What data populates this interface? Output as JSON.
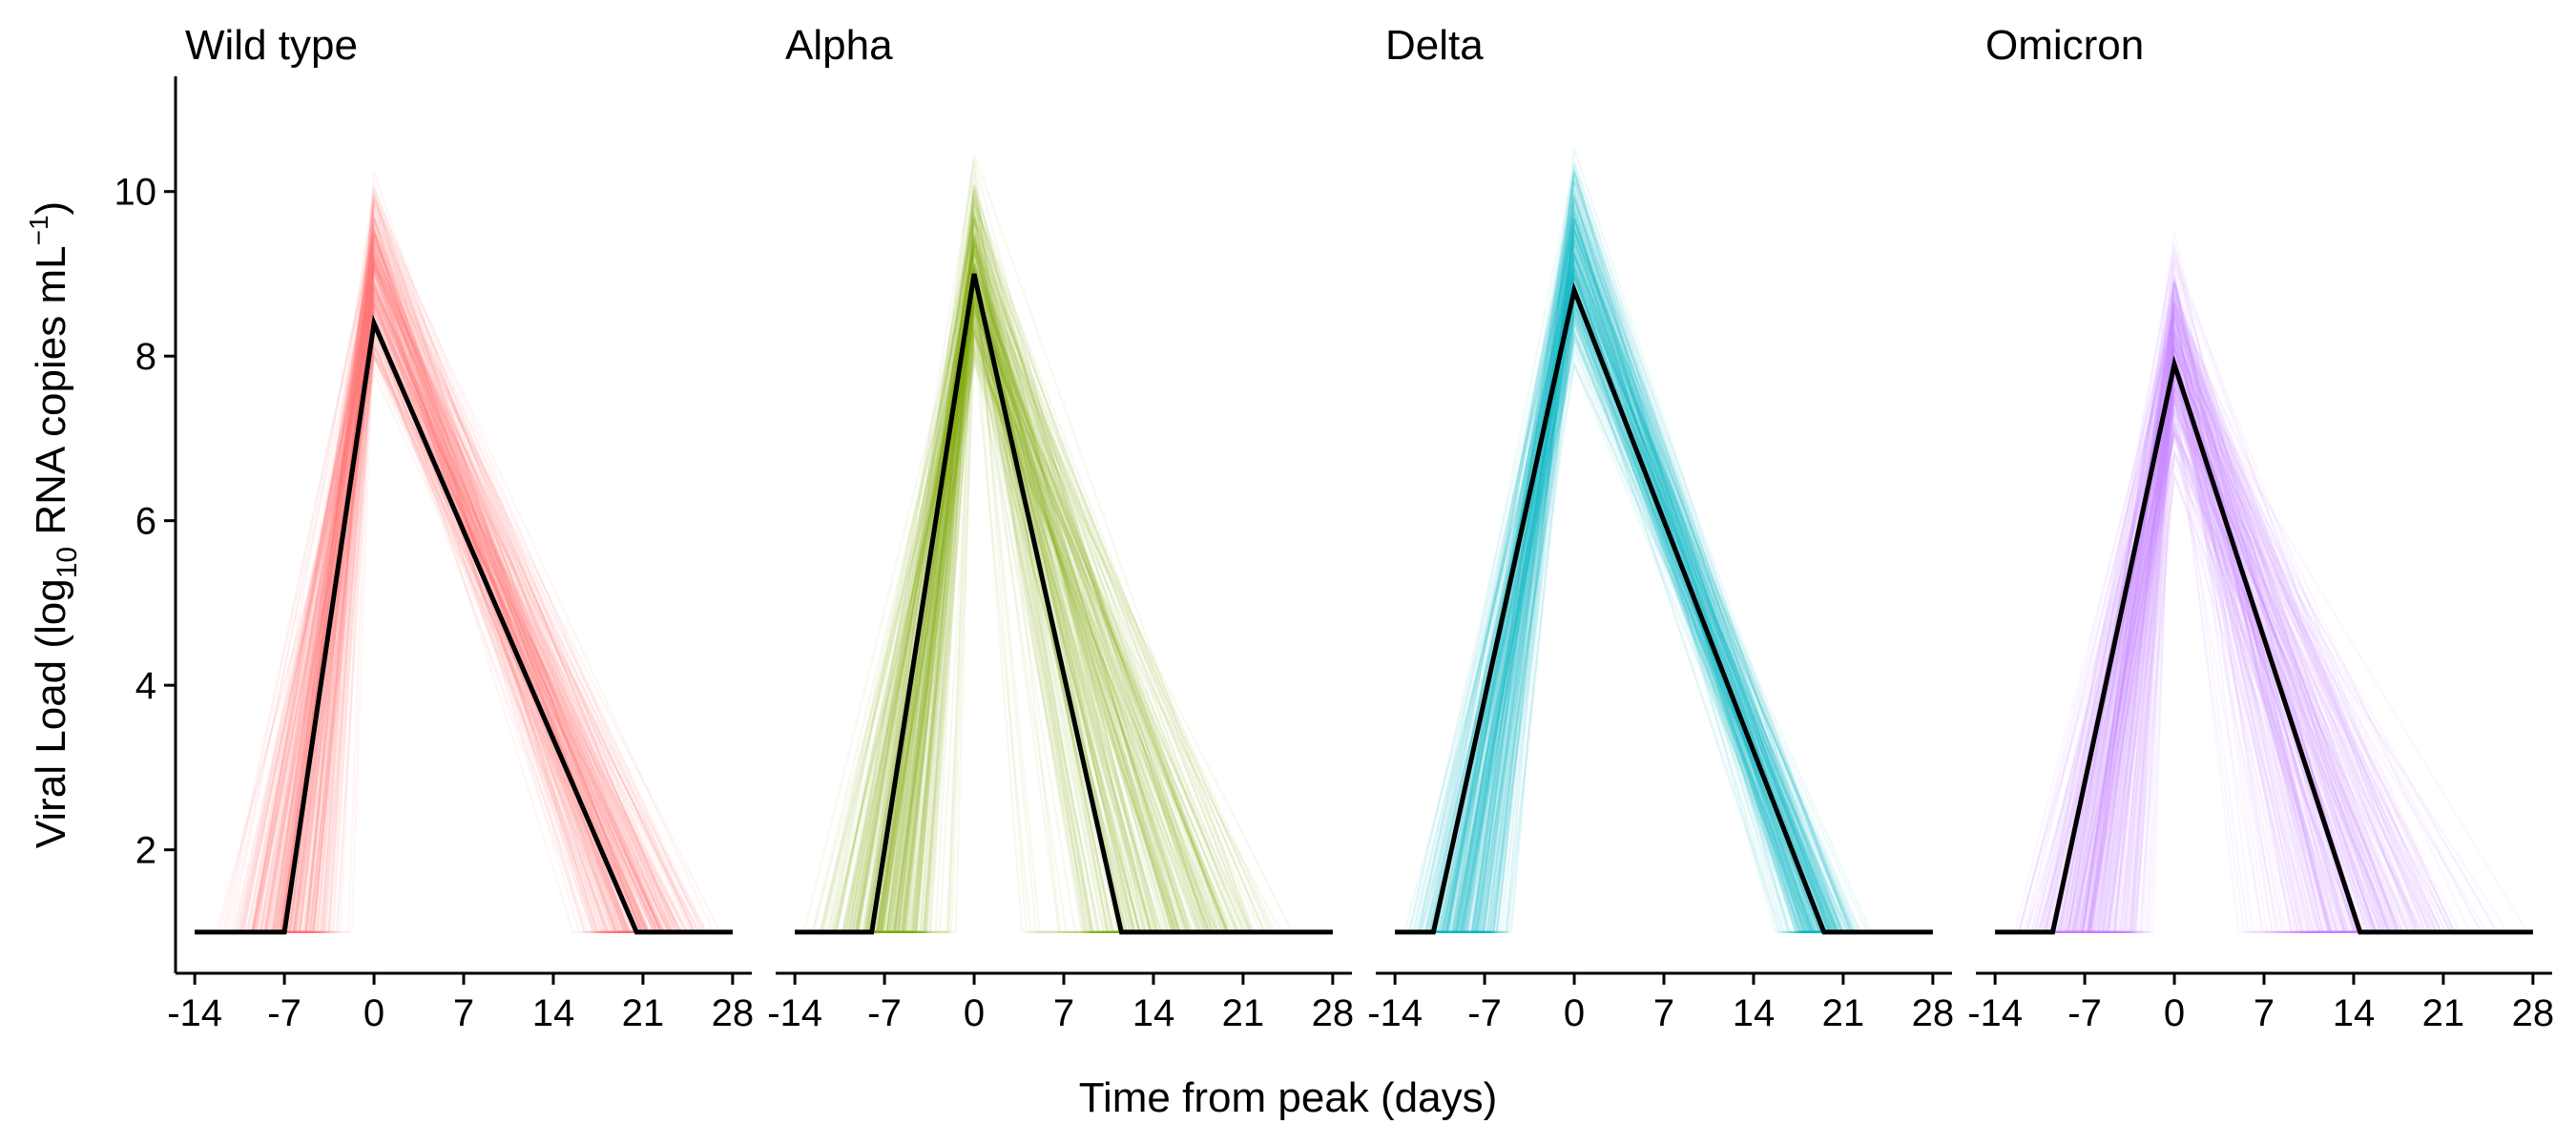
{
  "chart_data": {
    "type": "line",
    "facets": [
      "Wild type",
      "Alpha",
      "Delta",
      "Omicron"
    ],
    "xlabel": "Time from peak (days)",
    "ylabel": {
      "prefix": "Viral Load (log",
      "sub": "10",
      "middle": " RNA copies mL",
      "sup": "−1",
      "suffix": ")"
    },
    "x_ticks": [
      -14,
      -7,
      0,
      7,
      14,
      21,
      28
    ],
    "x_tick_labels": [
      "-14",
      "-7",
      "0",
      "7",
      "14",
      "21",
      "28"
    ],
    "y_ticks": [
      2,
      4,
      6,
      8,
      10
    ],
    "y_tick_labels": [
      "2",
      "4",
      "6",
      "8",
      "10"
    ],
    "xlim": [
      -15.5,
      29.5
    ],
    "ylim": [
      0.5,
      11.4
    ],
    "baseline": 1,
    "grid": false,
    "legend": "none",
    "colors": {
      "Wild type": "#F8766D",
      "Alpha": "#7CAE00",
      "Delta": "#00BFC4",
      "Omicron": "#C77CFF",
      "mean": "#000000"
    },
    "series": [
      {
        "name": "Wild type",
        "mean_trajectory": {
          "x": [
            -14,
            -7,
            0,
            20.5,
            28
          ],
          "y": [
            1,
            1,
            8.4,
            1,
            1
          ]
        },
        "spread": {
          "peak": [
            7.4,
            10.6
          ],
          "onset": [
            -14,
            -0.5
          ],
          "clearance": [
            14.5,
            28
          ]
        }
      },
      {
        "name": "Alpha",
        "mean_trajectory": {
          "x": [
            -14,
            -8,
            0,
            11.5,
            28
          ],
          "y": [
            1,
            1,
            9.0,
            1,
            1
          ]
        },
        "spread": {
          "peak": [
            7.4,
            10.7
          ],
          "onset": [
            -14,
            -0.3
          ],
          "clearance": [
            2,
            28
          ]
        }
      },
      {
        "name": "Delta",
        "mean_trajectory": {
          "x": [
            -14,
            -11,
            0,
            19.5,
            28
          ],
          "y": [
            1,
            1,
            8.8,
            1,
            1
          ]
        },
        "spread": {
          "peak": [
            7.5,
            10.9
          ],
          "onset": [
            -14,
            -4
          ],
          "clearance": [
            15,
            24
          ]
        }
      },
      {
        "name": "Omicron",
        "mean_trajectory": {
          "x": [
            -14,
            -9.5,
            0,
            14.5,
            28
          ],
          "y": [
            1,
            1,
            7.9,
            1,
            1
          ]
        },
        "spread": {
          "peak": [
            6.2,
            9.9
          ],
          "onset": [
            -14,
            -0.2
          ],
          "clearance": [
            2,
            28
          ]
        }
      }
    ]
  }
}
